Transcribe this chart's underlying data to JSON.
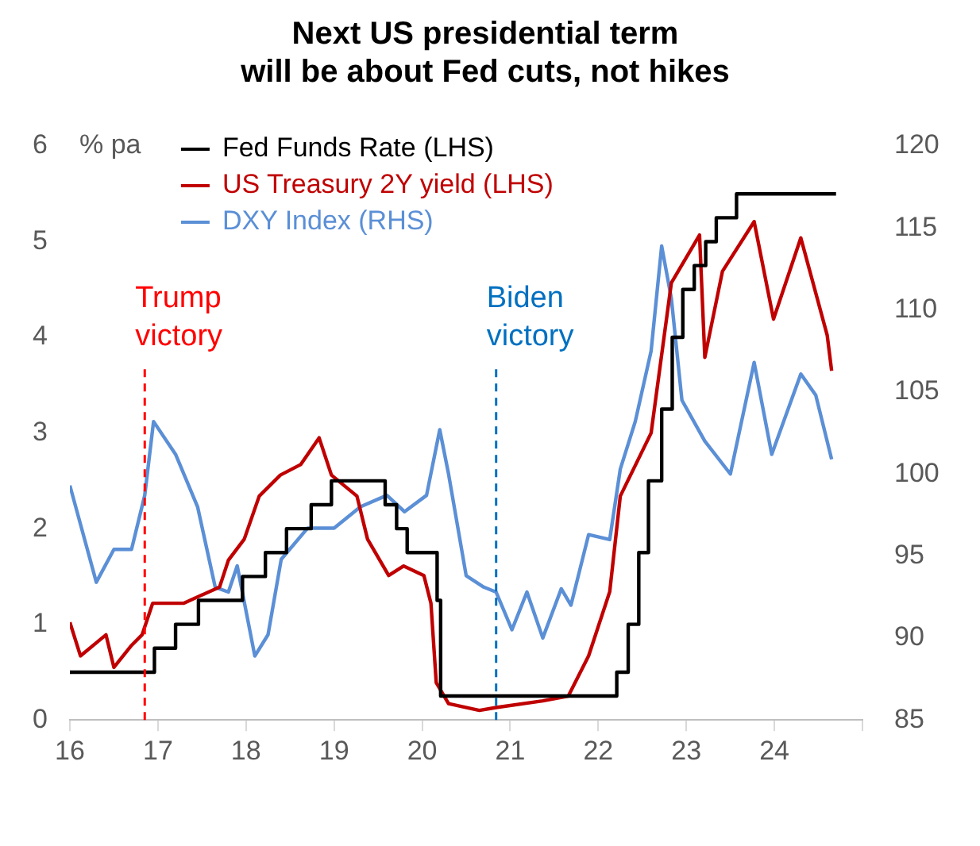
{
  "chart_data": {
    "type": "line",
    "title": "Next US presidential term\nwill be about Fed cuts, not hikes",
    "ylabel": "% pa",
    "legend": "top",
    "grid": false,
    "marker": "none",
    "line_style": "solid",
    "xlim": [
      16,
      25
    ],
    "xticks": [
      16,
      17,
      18,
      19,
      20,
      21,
      22,
      23,
      24,
      {
        "value": 25,
        "label": null
      }
    ],
    "ylim": [
      0,
      6
    ],
    "yticks": [
      0,
      1,
      2,
      3,
      4,
      5,
      6
    ],
    "y2lim": [
      85,
      120
    ],
    "y2ticks": [
      85,
      90,
      95,
      100,
      105,
      110,
      115,
      120
    ],
    "ref_lines": [
      {
        "axis": "x",
        "value": 16.85,
        "label": "Trump\nvictory",
        "color": "#ff0000",
        "line_style": "dashed"
      },
      {
        "axis": "x",
        "value": 20.84,
        "label": "Biden\nvictory",
        "color": "#0070c0",
        "line_style": "dashed"
      }
    ],
    "series": [
      {
        "name": "Fed Funds Rate (LHS)",
        "type": "step",
        "color": "#000000",
        "x": [
          16,
          16.96,
          17.2,
          17.46,
          17.96,
          18.22,
          18.46,
          18.74,
          18.97,
          19.58,
          19.71,
          19.83,
          20.17,
          20.21,
          22.21,
          22.34,
          22.46,
          22.57,
          22.72,
          22.84,
          22.96,
          23.09,
          23.22,
          23.34,
          23.57,
          24.7
        ],
        "values": [
          0.5,
          0.75,
          1,
          1.25,
          1.5,
          1.75,
          2,
          2.25,
          2.5,
          2.25,
          2,
          1.75,
          1.25,
          0.25,
          0.5,
          1,
          1.75,
          2.5,
          3.25,
          4,
          4.5,
          4.75,
          5,
          5.25,
          5.5,
          5.5
        ]
      },
      {
        "name": "US Treasury 2Y yield (LHS)",
        "color": "#c00000",
        "x": [
          16,
          16.12,
          16.41,
          16.5,
          16.7,
          16.82,
          16.94,
          17.29,
          17.7,
          17.8,
          17.98,
          18.15,
          18.39,
          18.62,
          18.83,
          18.97,
          19.26,
          19.38,
          19.62,
          19.79,
          20.02,
          20.1,
          20.16,
          20.3,
          20.65,
          20.84,
          21.37,
          21.66,
          21.89,
          22.13,
          22.25,
          22.6,
          22.83,
          23.15,
          23.21,
          23.41,
          23.77,
          23.99,
          24.3,
          24.6,
          24.65
        ],
        "values": [
          1.02,
          0.67,
          0.89,
          0.55,
          0.78,
          0.89,
          1.22,
          1.22,
          1.39,
          1.67,
          1.89,
          2.34,
          2.56,
          2.67,
          2.95,
          2.56,
          2.34,
          1.89,
          1.51,
          1.61,
          1.51,
          1.22,
          0.39,
          0.17,
          0.1,
          0.13,
          0.2,
          0.25,
          0.67,
          1.34,
          2.34,
          3,
          4.57,
          5.07,
          3.79,
          4.69,
          5.21,
          4.19,
          5.04,
          4.02,
          3.65
        ]
      },
      {
        "name": "DXY Index (RHS)",
        "axis": "y2",
        "color": "#5b8fd6",
        "x": [
          16,
          16.3,
          16.5,
          16.7,
          16.85,
          16.95,
          17.2,
          17.45,
          17.65,
          17.8,
          17.9,
          18.1,
          18.25,
          18.4,
          18.7,
          19,
          19.3,
          19.6,
          19.8,
          20.05,
          20.2,
          20.3,
          20.5,
          20.7,
          20.84,
          21.02,
          21.19,
          21.37,
          21.58,
          21.69,
          21.89,
          22.13,
          22.25,
          22.42,
          22.6,
          22.72,
          22.83,
          22.95,
          23.21,
          23.5,
          23.77,
          23.97,
          24.3,
          24.47,
          24.65
        ],
        "values": [
          99.3,
          93.4,
          95.4,
          95.4,
          98.7,
          103.2,
          101.2,
          98,
          93.1,
          92.8,
          94.4,
          88.9,
          90.2,
          94.8,
          96.7,
          96.7,
          98,
          98.7,
          97.7,
          98.7,
          102.7,
          100,
          93.8,
          93.1,
          92.8,
          90.5,
          92.8,
          90,
          93,
          92,
          96.3,
          96,
          100.3,
          103.2,
          107.5,
          113.9,
          110.7,
          104.5,
          102,
          100,
          106.8,
          101.2,
          106.1,
          104.8,
          100.9
        ]
      }
    ]
  }
}
